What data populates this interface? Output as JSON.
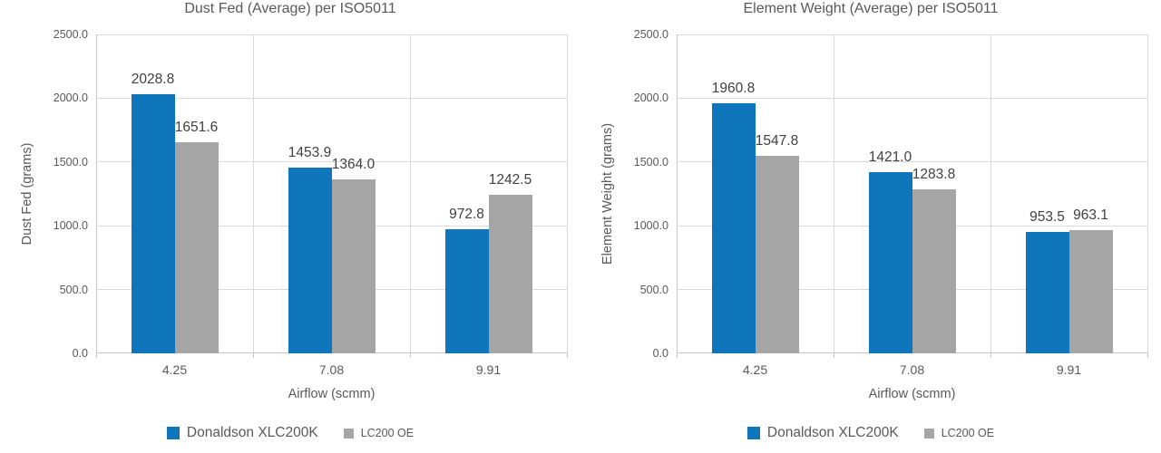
{
  "style": {
    "series1_color": "#0F76BC",
    "series2_color": "#A5A5A5",
    "title_color": "#595959",
    "axis_text_color": "#595959",
    "data_label_color": "#404040",
    "gridline_color": "#D9D9D9",
    "axis_line_color": "#C6C6C6",
    "background": "#FFFFFF"
  },
  "chart_data": [
    {
      "type": "bar",
      "title": "Dust Fed (Average) per ISO5011",
      "xlabel": "Airflow (scmm)",
      "ylabel": "Dust Fed (grams)",
      "categories": [
        "4.25",
        "7.08",
        "9.91"
      ],
      "series": [
        {
          "name": "Donaldson XLC200K",
          "color": "#0F76BC",
          "values": [
            2028.8,
            1453.9,
            972.8
          ],
          "labels": [
            "2028.8",
            "1453.9",
            "972.8"
          ]
        },
        {
          "name": "LC200 OE",
          "color": "#A5A5A5",
          "values": [
            1651.6,
            1364.0,
            1242.5
          ],
          "labels": [
            "1651.6",
            "1364.0",
            "1242.5"
          ]
        }
      ],
      "ylim": [
        0,
        2500
      ],
      "ytick_step": 500,
      "ytick_labels": [
        "0.0",
        "500.0",
        "1000.0",
        "1500.0",
        "2000.0",
        "2500.0"
      ],
      "grid": true,
      "legend_position": "bottom"
    },
    {
      "type": "bar",
      "title": "Element Weight (Average) per ISO5011",
      "xlabel": "Airflow (scmm)",
      "ylabel": "Element Weight (grams)",
      "categories": [
        "4.25",
        "7.08",
        "9.91"
      ],
      "series": [
        {
          "name": "Donaldson XLC200K",
          "color": "#0F76BC",
          "values": [
            1960.8,
            1421.0,
            953.5
          ],
          "labels": [
            "1960.8",
            "1421.0",
            "953.5"
          ]
        },
        {
          "name": "LC200 OE",
          "color": "#A5A5A5",
          "values": [
            1547.8,
            1283.8,
            963.1
          ],
          "labels": [
            "1547.8",
            "1283.8",
            "963.1"
          ]
        }
      ],
      "ylim": [
        0,
        2500
      ],
      "ytick_step": 500,
      "ytick_labels": [
        "0.0",
        "500.0",
        "1000.0",
        "1500.0",
        "2000.0",
        "2500.0"
      ],
      "grid": true,
      "legend_position": "bottom"
    }
  ]
}
